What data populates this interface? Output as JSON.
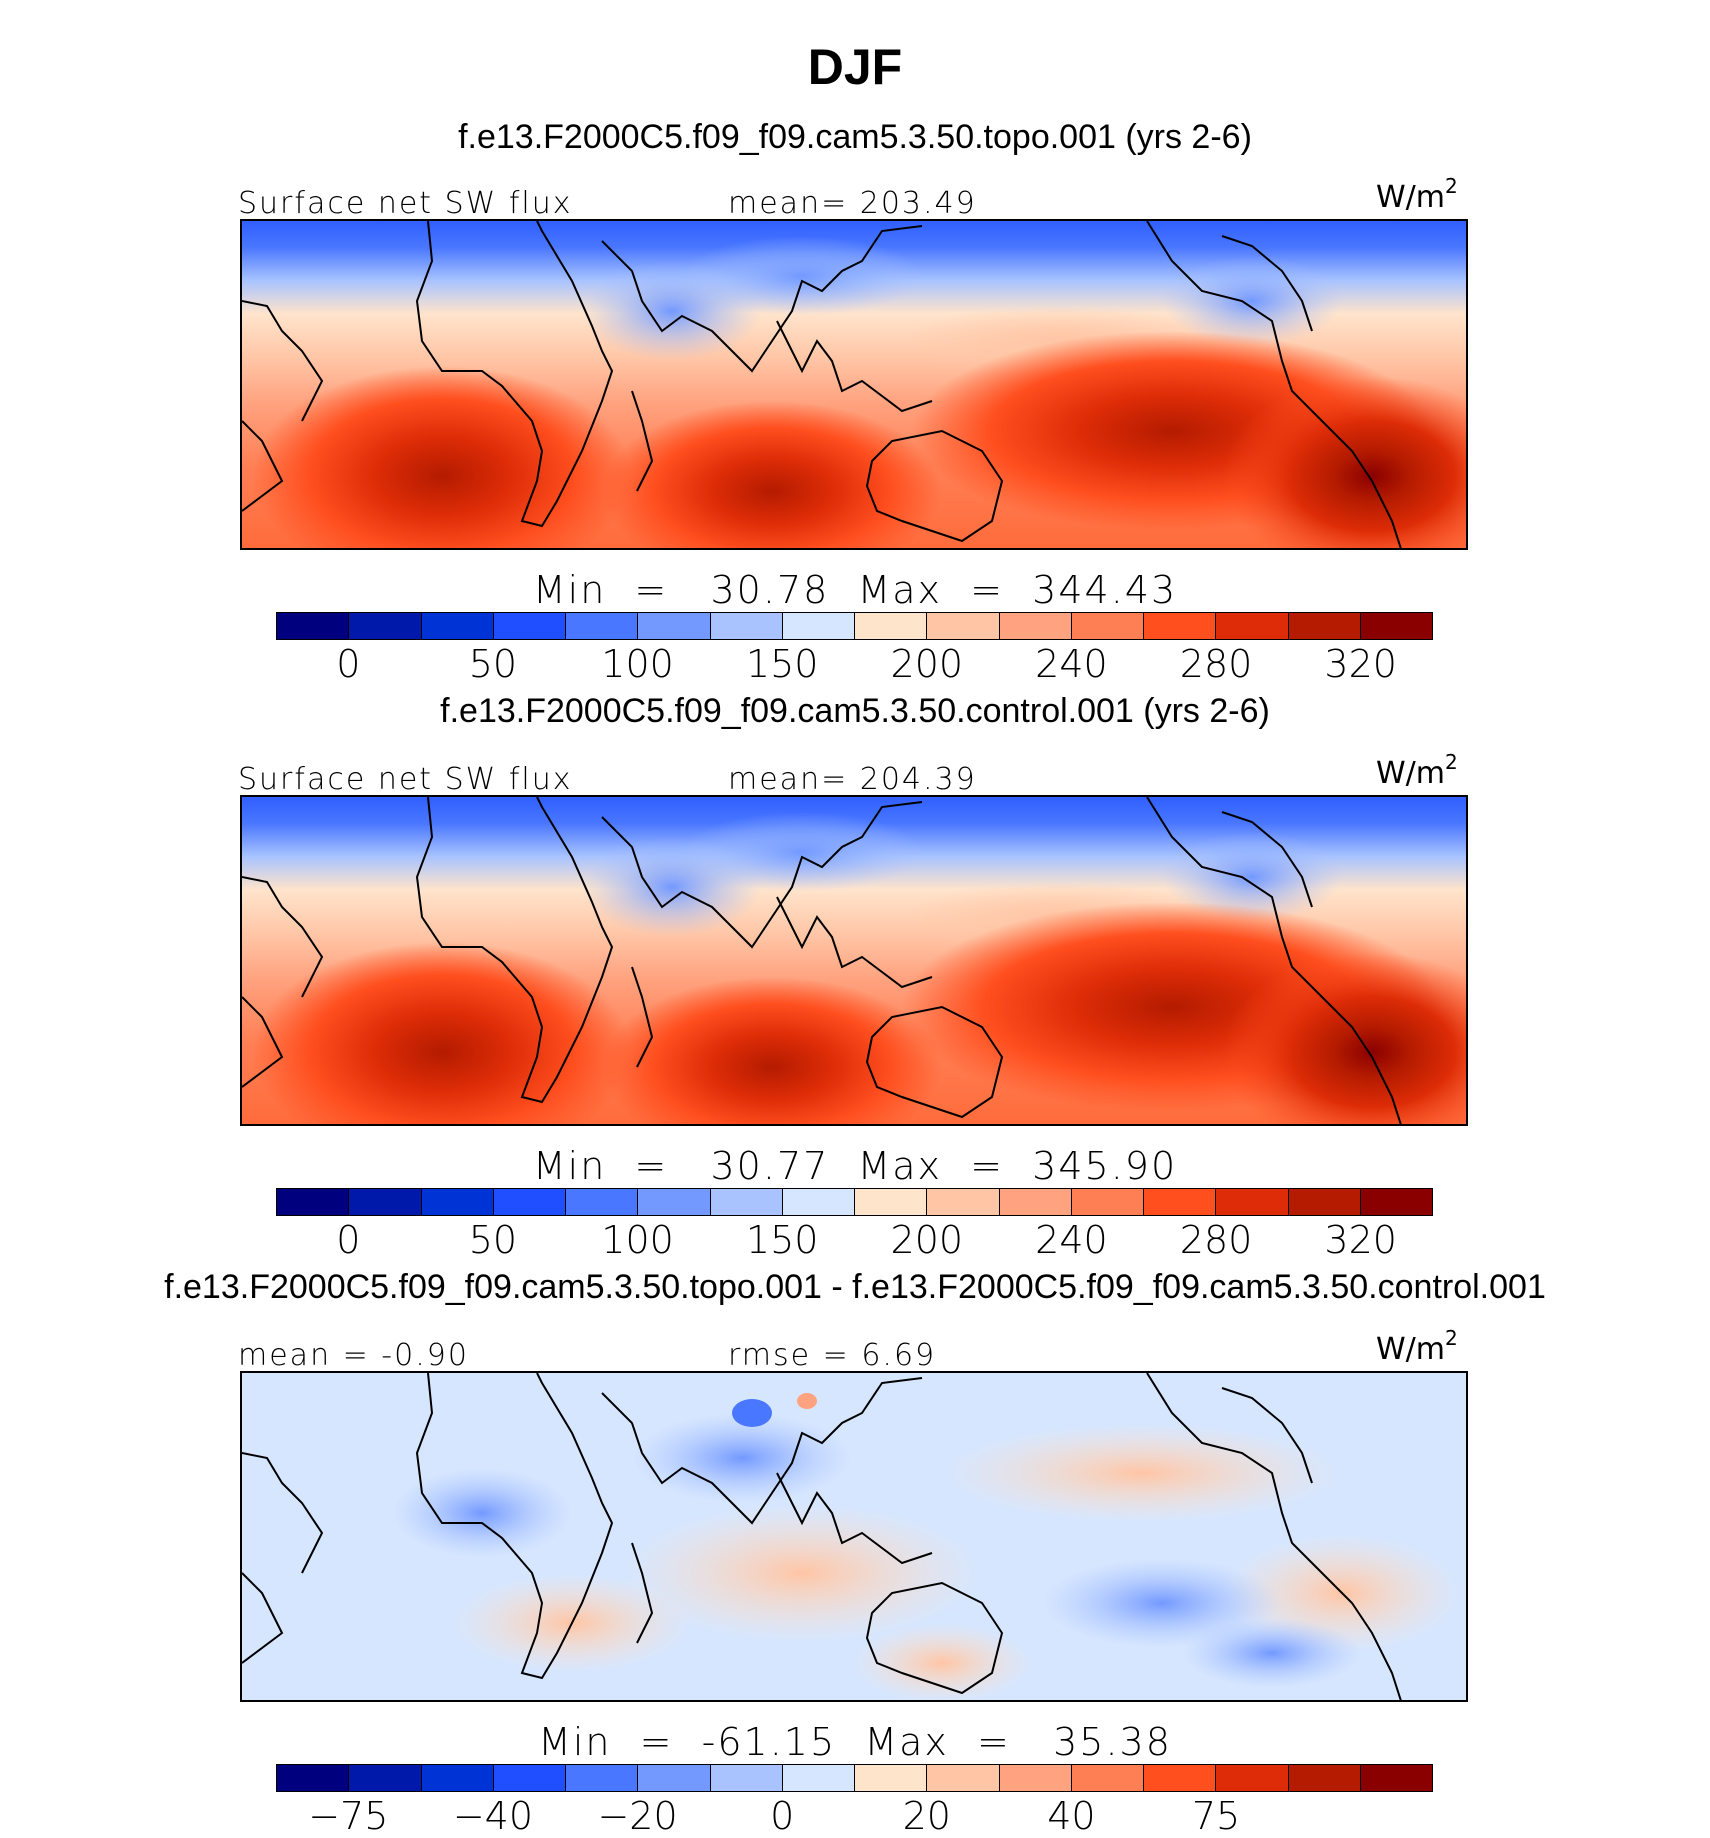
{
  "title": "DJF",
  "panels": [
    {
      "case_title": "f.e13.F2000C5.f09_f09.cam5.3.50.topo.001 (yrs 2-6)",
      "left_label": "Surface net SW flux",
      "center_label": "mean=  203.49",
      "units": "W/m",
      "units_sup": "2",
      "minmax": "Min  =   30.78  Max  =  344.43",
      "colorbar": {
        "colors": [
          "#00007f",
          "#0019aa",
          "#0033d5",
          "#1f4fff",
          "#4a77ff",
          "#7399ff",
          "#a8c3ff",
          "#d6e6ff",
          "#ffe4cc",
          "#ffc5a5",
          "#ffa27f",
          "#ff7f54",
          "#ff4f1f",
          "#dd2c07",
          "#b41b00",
          "#8a0000"
        ],
        "tick_labels": [
          "0",
          "50",
          "100",
          "150",
          "200",
          "240",
          "280",
          "320"
        ]
      }
    },
    {
      "case_title": "f.e13.F2000C5.f09_f09.cam5.3.50.control.001 (yrs 2-6)",
      "left_label": "Surface net SW flux",
      "center_label": "mean=  204.39",
      "units": "W/m",
      "units_sup": "2",
      "minmax": "Min  =   30.77  Max  =  345.90",
      "colorbar": {
        "colors": [
          "#00007f",
          "#0019aa",
          "#0033d5",
          "#1f4fff",
          "#4a77ff",
          "#7399ff",
          "#a8c3ff",
          "#d6e6ff",
          "#ffe4cc",
          "#ffc5a5",
          "#ffa27f",
          "#ff7f54",
          "#ff4f1f",
          "#dd2c07",
          "#b41b00",
          "#8a0000"
        ],
        "tick_labels": [
          "0",
          "50",
          "100",
          "150",
          "200",
          "240",
          "280",
          "320"
        ]
      }
    },
    {
      "case_title": "f.e13.F2000C5.f09_f09.cam5.3.50.topo.001 - f.e13.F2000C5.f09_f09.cam5.3.50.control.001",
      "left_label": "mean =   -0.90",
      "center_label": "rmse =    6.69",
      "units": "W/m",
      "units_sup": "2",
      "minmax": "Min  =  -61.15  Max  =   35.38",
      "colorbar": {
        "colors": [
          "#00007f",
          "#0019aa",
          "#0033d5",
          "#1f4fff",
          "#4a77ff",
          "#7399ff",
          "#a8c3ff",
          "#d6e6ff",
          "#ffe4cc",
          "#ffc5a5",
          "#ffa27f",
          "#ff7f54",
          "#ff4f1f",
          "#dd2c07",
          "#b41b00",
          "#8a0000"
        ],
        "tick_labels": [
          "-75",
          "-40",
          "-20",
          "0",
          "20",
          "40",
          "75"
        ]
      }
    }
  ]
}
